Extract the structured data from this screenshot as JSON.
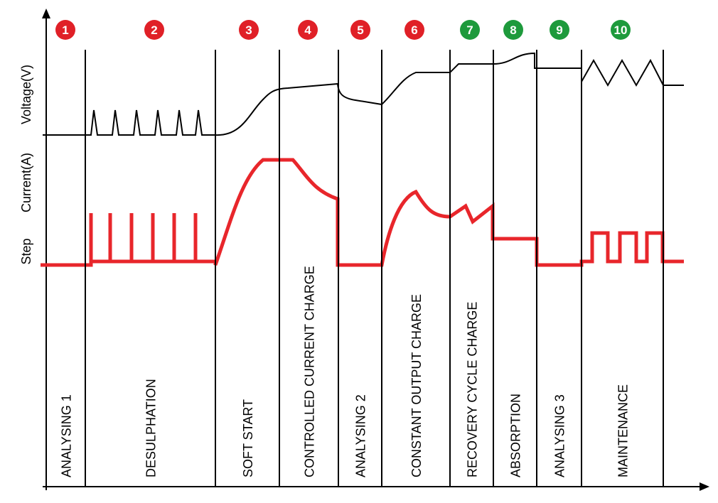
{
  "axis_labels": {
    "voltage": "Voltage(V)",
    "current": "Current(A)",
    "step": "Step"
  },
  "steps": [
    {
      "number": "1",
      "label": "ANALYSING 1",
      "color": "#e02027"
    },
    {
      "number": "2",
      "label": "DESULPHATION",
      "color": "#e02027"
    },
    {
      "number": "3",
      "label": "SOFT START",
      "color": "#e02027"
    },
    {
      "number": "4",
      "label": "CONTROLLED CURRENT CHARGE",
      "color": "#e02027"
    },
    {
      "number": "5",
      "label": "ANALYSING 2",
      "color": "#e02027"
    },
    {
      "number": "6",
      "label": "CONSTANT OUTPUT CHARGE",
      "color": "#e02027"
    },
    {
      "number": "7",
      "label": "RECOVERY CYCLE CHARGE",
      "color": "#1e9a3c"
    },
    {
      "number": "8",
      "label": "ABSORPTION",
      "color": "#1e9a3c"
    },
    {
      "number": "9",
      "label": "ANALYSING 3",
      "color": "#1e9a3c"
    },
    {
      "number": "10",
      "label": "MAINTENANCE",
      "color": "#1e9a3c"
    }
  ]
}
